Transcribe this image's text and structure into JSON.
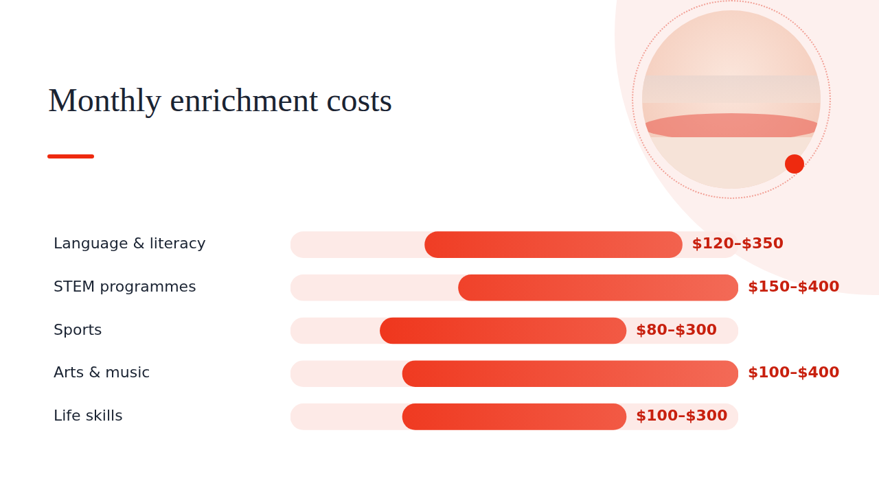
{
  "chart_data": {
    "type": "bar",
    "orientation": "horizontal",
    "title": "Monthly enrichment costs",
    "categories": [
      "Language & literacy",
      "STEM programmes",
      "Sports",
      "Arts & music",
      "Life skills"
    ],
    "values": [
      [
        120,
        350
      ],
      [
        150,
        400
      ],
      [
        80,
        300
      ],
      [
        100,
        400
      ],
      [
        100,
        300
      ]
    ],
    "value_labels": [
      "$120–$350",
      "$150–$400",
      "$80–$300",
      "$100–$400",
      "$100–$300"
    ],
    "data_labels": true,
    "color": "#ee2a0f",
    "xlim": [
      0,
      400
    ],
    "grid": false,
    "tick_labels": "y"
  }
}
